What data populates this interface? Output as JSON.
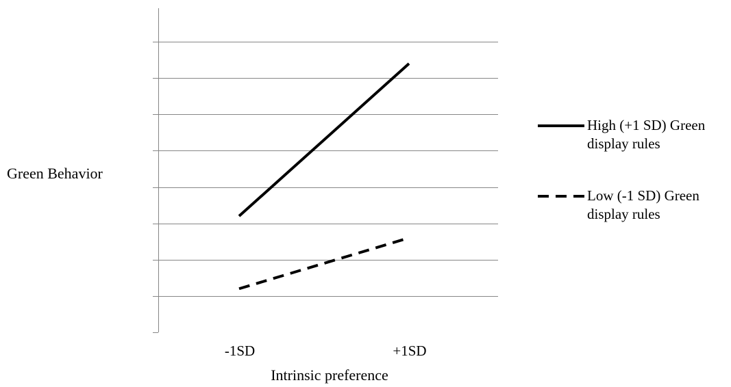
{
  "chart_data": {
    "type": "line",
    "xlabel": "Intrinsic preference",
    "ylabel": "Green Behavior",
    "categories": [
      "-1SD",
      "+1SD"
    ],
    "ylim": [
      0,
      9
    ],
    "grid": true,
    "legend_position": "right",
    "series": [
      {
        "name_lines": [
          "High (+1 SD) Green",
          "display rules"
        ],
        "values": [
          3.2,
          7.4
        ],
        "line_style": "solid",
        "color": "#000000"
      },
      {
        "name_lines": [
          "Low (-1 SD) Green",
          "display rules"
        ],
        "values": [
          1.2,
          2.6
        ],
        "line_style": "dashed",
        "color": "#000000"
      }
    ]
  },
  "colors": {
    "grid": "#868686",
    "axis": "#868686",
    "text": "#000000"
  }
}
